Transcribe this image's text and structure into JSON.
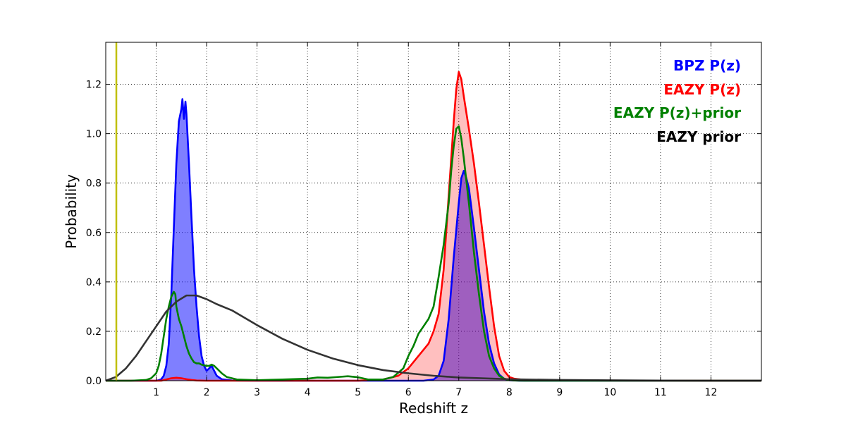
{
  "chart_data": {
    "type": "area",
    "xlabel": "Redshift z",
    "ylabel": "Probability",
    "xlim": [
      0,
      13
    ],
    "ylim": [
      0,
      1.37
    ],
    "grid": true,
    "legend_placement": "top-right",
    "x_ticks": [
      1,
      2,
      3,
      4,
      5,
      6,
      7,
      8,
      9,
      10,
      11,
      12
    ],
    "x_tick_labels": [
      "1",
      "2",
      "3",
      "4",
      "5",
      "6",
      "7",
      "8",
      "9",
      "10",
      "11",
      "12"
    ],
    "y_ticks": [
      0.0,
      0.2,
      0.4,
      0.6,
      0.8,
      1.0,
      1.2
    ],
    "y_tick_labels": [
      "0.0",
      "0.2",
      "0.4",
      "0.6",
      "0.8",
      "1.0",
      "1.2"
    ],
    "reference_line": {
      "x": 0.21,
      "color": "#bfbf00"
    },
    "series": [
      {
        "name": "BPZ P(z)",
        "color": "#0000ff",
        "fill": "#0000ff",
        "fill_opacity": 0.5,
        "x": [
          0,
          1.0,
          1.05,
          1.1,
          1.15,
          1.2,
          1.25,
          1.3,
          1.35,
          1.4,
          1.45,
          1.5,
          1.52,
          1.55,
          1.58,
          1.6,
          1.62,
          1.65,
          1.7,
          1.75,
          1.8,
          1.85,
          1.9,
          1.95,
          2.0,
          2.05,
          2.1,
          2.15,
          2.2,
          2.3,
          2.5,
          3.0,
          5.0,
          6.0,
          6.3,
          6.5,
          6.6,
          6.7,
          6.8,
          6.9,
          7.0,
          7.05,
          7.1,
          7.15,
          7.2,
          7.3,
          7.4,
          7.5,
          7.6,
          7.7,
          7.8,
          7.9,
          8.0,
          8.2,
          9.0,
          13.0
        ],
        "y": [
          0,
          0,
          0.002,
          0.006,
          0.02,
          0.06,
          0.15,
          0.35,
          0.62,
          0.88,
          1.05,
          1.1,
          1.14,
          1.06,
          1.13,
          1.08,
          1.0,
          0.88,
          0.66,
          0.45,
          0.3,
          0.18,
          0.1,
          0.06,
          0.04,
          0.05,
          0.06,
          0.04,
          0.02,
          0.006,
          0.001,
          0,
          0,
          0,
          0,
          0.005,
          0.02,
          0.08,
          0.25,
          0.5,
          0.72,
          0.82,
          0.85,
          0.82,
          0.78,
          0.62,
          0.45,
          0.28,
          0.15,
          0.07,
          0.025,
          0.008,
          0.002,
          0,
          0,
          0
        ]
      },
      {
        "name": "EAZY P(z)",
        "color": "#ff0000",
        "fill": "#ff0000",
        "fill_opacity": 0.25,
        "x": [
          0,
          1.1,
          1.2,
          1.3,
          1.4,
          1.5,
          1.6,
          1.7,
          1.8,
          2.0,
          2.5,
          4.0,
          5.0,
          5.5,
          5.8,
          6.0,
          6.2,
          6.4,
          6.5,
          6.6,
          6.7,
          6.8,
          6.9,
          6.95,
          7.0,
          7.05,
          7.1,
          7.2,
          7.3,
          7.4,
          7.5,
          7.6,
          7.7,
          7.8,
          7.9,
          8.0,
          8.1,
          8.3,
          9.0,
          13.0
        ],
        "y": [
          0,
          0,
          0.005,
          0.01,
          0.012,
          0.01,
          0.006,
          0.003,
          0.001,
          0,
          0,
          0,
          0,
          0.005,
          0.02,
          0.05,
          0.1,
          0.15,
          0.2,
          0.27,
          0.45,
          0.75,
          1.05,
          1.18,
          1.25,
          1.22,
          1.15,
          1.02,
          0.88,
          0.72,
          0.55,
          0.38,
          0.22,
          0.1,
          0.04,
          0.015,
          0.008,
          0.003,
          0.001,
          0
        ]
      },
      {
        "name": "EAZY P(z)+prior",
        "color": "#008000",
        "x": [
          0,
          0.5,
          0.8,
          0.9,
          1.0,
          1.05,
          1.1,
          1.15,
          1.2,
          1.25,
          1.3,
          1.35,
          1.38,
          1.4,
          1.45,
          1.5,
          1.55,
          1.6,
          1.65,
          1.7,
          1.75,
          1.8,
          1.85,
          1.9,
          2.0,
          2.05,
          2.1,
          2.15,
          2.2,
          2.3,
          2.4,
          2.6,
          3.0,
          3.5,
          4.0,
          4.2,
          4.4,
          4.6,
          4.8,
          5.0,
          5.2,
          5.5,
          5.7,
          5.9,
          6.0,
          6.1,
          6.2,
          6.3,
          6.4,
          6.5,
          6.6,
          6.7,
          6.8,
          6.85,
          6.9,
          6.95,
          7.0,
          7.05,
          7.1,
          7.2,
          7.3,
          7.4,
          7.5,
          7.6,
          7.7,
          7.8,
          7.9,
          8.0,
          8.1,
          8.3,
          13.0
        ],
        "y": [
          0,
          0,
          0.003,
          0.01,
          0.03,
          0.06,
          0.11,
          0.18,
          0.25,
          0.3,
          0.34,
          0.36,
          0.35,
          0.3,
          0.25,
          0.22,
          0.18,
          0.14,
          0.11,
          0.09,
          0.075,
          0.07,
          0.07,
          0.065,
          0.06,
          0.06,
          0.065,
          0.06,
          0.05,
          0.03,
          0.015,
          0.005,
          0.002,
          0.005,
          0.008,
          0.013,
          0.012,
          0.015,
          0.018,
          0.014,
          0.005,
          0.005,
          0.015,
          0.05,
          0.1,
          0.14,
          0.19,
          0.22,
          0.25,
          0.3,
          0.42,
          0.55,
          0.72,
          0.85,
          0.95,
          1.02,
          1.03,
          0.98,
          0.9,
          0.72,
          0.52,
          0.35,
          0.2,
          0.1,
          0.05,
          0.02,
          0.008,
          0.003,
          0.001,
          0,
          0
        ]
      },
      {
        "name": "EAZY prior",
        "color": "#333333",
        "x": [
          0,
          0.2,
          0.4,
          0.6,
          0.8,
          1.0,
          1.2,
          1.4,
          1.6,
          1.8,
          2.0,
          2.2,
          2.5,
          3.0,
          3.5,
          4.0,
          4.5,
          5.0,
          5.5,
          6.0,
          6.5,
          7.0,
          8.0,
          9.0,
          10.0,
          11.0,
          12.0,
          13.0
        ],
        "y": [
          0,
          0.015,
          0.05,
          0.1,
          0.16,
          0.22,
          0.28,
          0.32,
          0.345,
          0.345,
          0.33,
          0.31,
          0.285,
          0.225,
          0.17,
          0.125,
          0.09,
          0.063,
          0.043,
          0.03,
          0.02,
          0.013,
          0.006,
          0.003,
          0.0015,
          0.0007,
          0.0003,
          0.0001
        ]
      }
    ]
  }
}
